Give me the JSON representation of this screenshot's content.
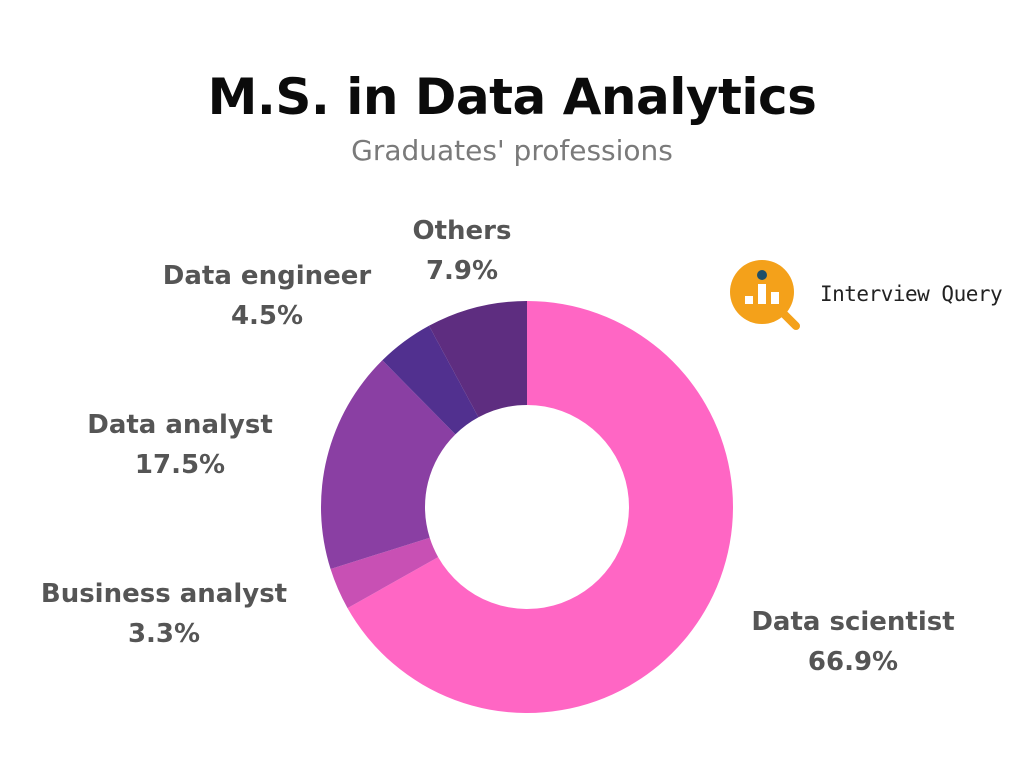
{
  "header": {
    "title": "M.S. in Data Analytics",
    "subtitle": "Graduates' professions"
  },
  "brand": {
    "name": "Interview Query",
    "icon": "magnifier-chart-icon",
    "color": "#f4a11a"
  },
  "chart_data": {
    "type": "pie",
    "style": "donut",
    "title": "M.S. in Data Analytics",
    "subtitle": "Graduates' professions",
    "legend": "none",
    "slices": [
      {
        "label": "Data scientist",
        "value": 66.9,
        "display": "66.9%",
        "color": "#ff66c4"
      },
      {
        "label": "Business analyst",
        "value": 3.3,
        "display": "3.3%",
        "color": "#c850b4"
      },
      {
        "label": "Data analyst",
        "value": 17.5,
        "display": "17.5%",
        "color": "#8a3fa3"
      },
      {
        "label": "Data engineer",
        "value": 4.5,
        "display": "4.5%",
        "color": "#51308f"
      },
      {
        "label": "Others",
        "value": 7.9,
        "display": "7.9%",
        "color": "#5e2d80"
      }
    ]
  }
}
